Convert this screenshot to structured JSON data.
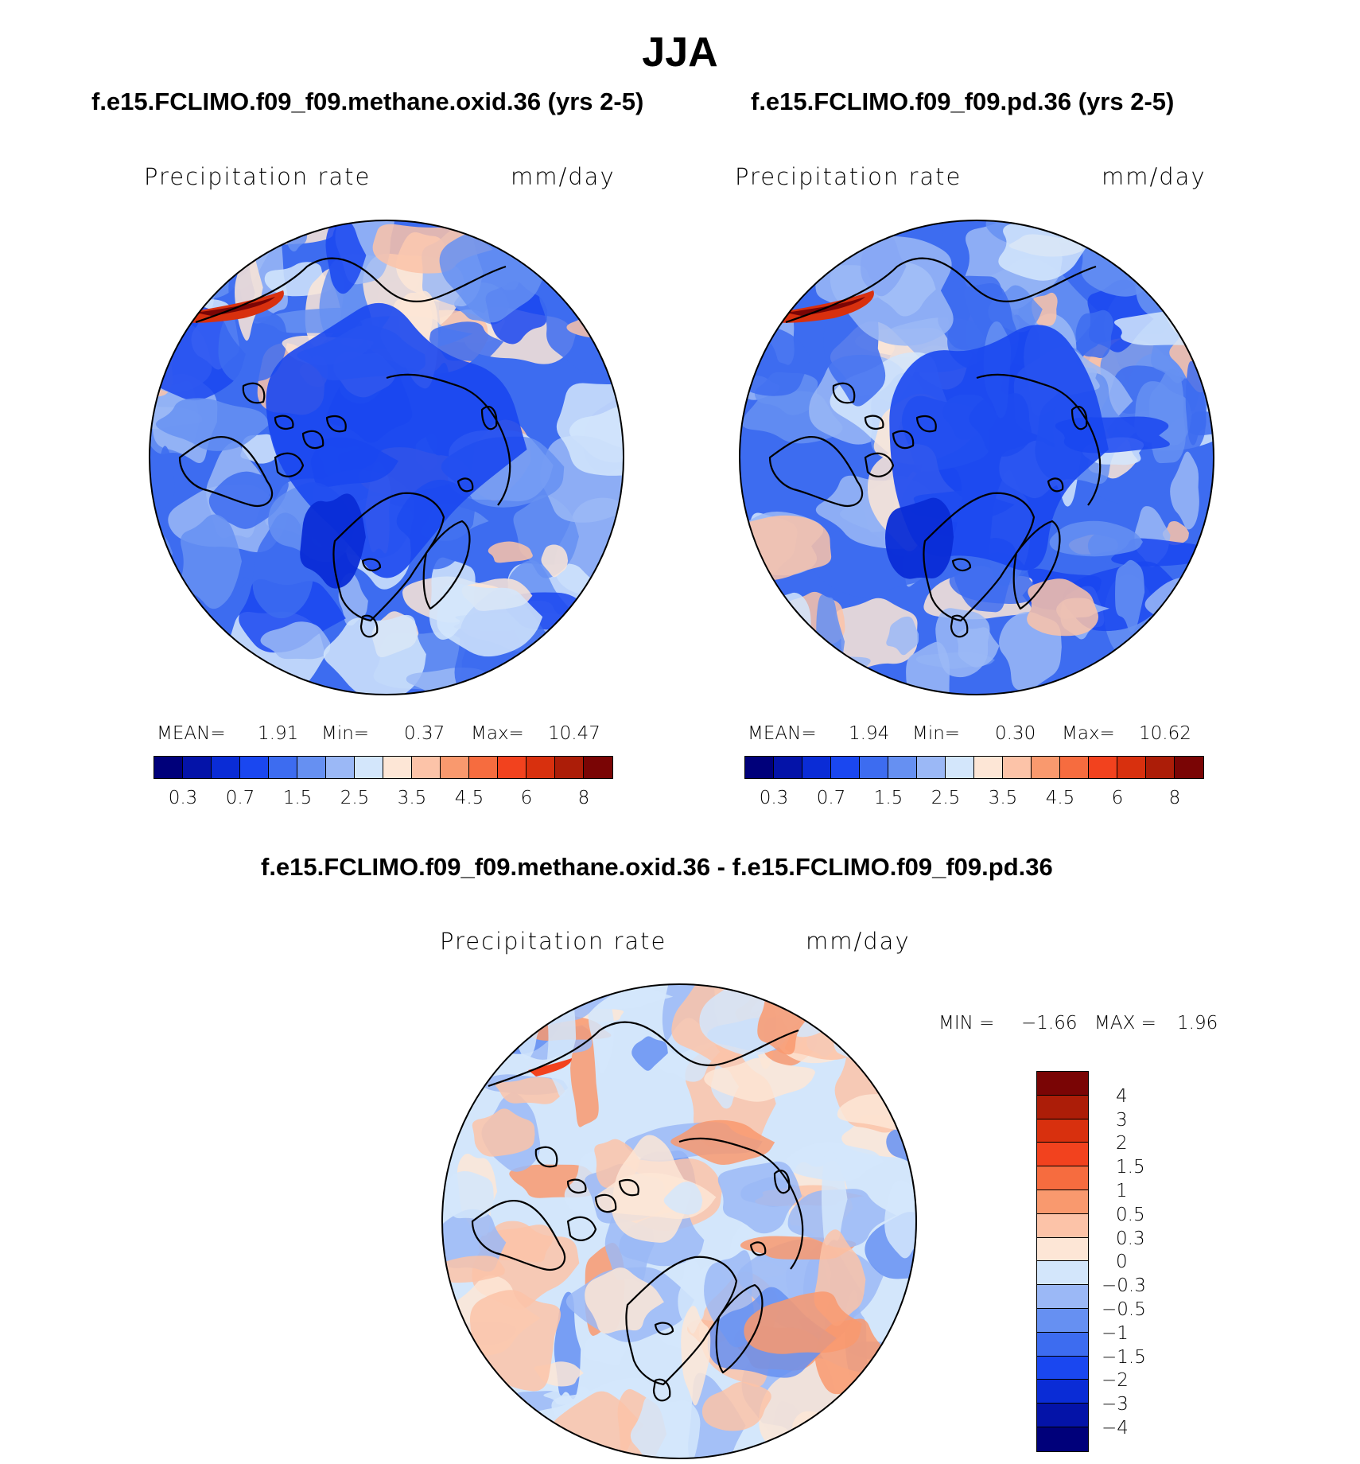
{
  "title": "JJA",
  "panels": {
    "left": {
      "case": "f.e15.FCLIMO.f09_f09.methane.oxid.36 (yrs 2-5)",
      "variable": "Precipitation rate",
      "units": "mm/day",
      "mean_label": "MEAN=",
      "mean": "1.91",
      "min_label": "Min=",
      "min": "0.37",
      "max_label": "Max=",
      "max": "10.47"
    },
    "right": {
      "case": "f.e15.FCLIMO.f09_f09.pd.36 (yrs 2-5)",
      "variable": "Precipitation rate",
      "units": "mm/day",
      "mean_label": "MEAN=",
      "mean": "1.94",
      "min_label": "Min=",
      "min": "0.30",
      "max_label": "Max=",
      "max": "10.62"
    },
    "diff": {
      "case": "f.e15.FCLIMO.f09_f09.methane.oxid.36 - f.e15.FCLIMO.f09_f09.pd.36",
      "variable": "Precipitation rate",
      "units": "mm/day",
      "min_label": "MIN =",
      "min": "−1.66",
      "max_label": "MAX =",
      "max": "1.96"
    }
  },
  "colorbar_main": {
    "colors": [
      "#00007a",
      "#0413a8",
      "#0a2cd6",
      "#1a47f0",
      "#3d6cf0",
      "#6690f2",
      "#9bb8f6",
      "#d3e6fb",
      "#fde6d6",
      "#fcc3a8",
      "#f9996e",
      "#f66c3f",
      "#f2421e",
      "#d8300e",
      "#ac1d08",
      "#7a0505"
    ],
    "tick_labels": [
      "0.3",
      "0.7",
      "1.5",
      "2.5",
      "3.5",
      "4.5",
      "6",
      "8"
    ]
  },
  "colorbar_diff": {
    "colors": [
      "#7a0505",
      "#ac1d08",
      "#d8300e",
      "#f2421e",
      "#f66c3f",
      "#f9996e",
      "#fcc3a8",
      "#fde6d6",
      "#d3e6fb",
      "#9bb8f6",
      "#6690f2",
      "#3d6cf0",
      "#1a47f0",
      "#0a2cd6",
      "#0413a8",
      "#00007a"
    ],
    "tick_labels": [
      "4",
      "3",
      "2",
      "1.5",
      "1",
      "0.5",
      "0.3",
      "0",
      "−0.3",
      "−0.5",
      "−1",
      "−1.5",
      "−2",
      "−3",
      "−4"
    ]
  },
  "map_palettes": {
    "main_base": "#3d6cf0",
    "diff_base": "#d3e6fb"
  }
}
